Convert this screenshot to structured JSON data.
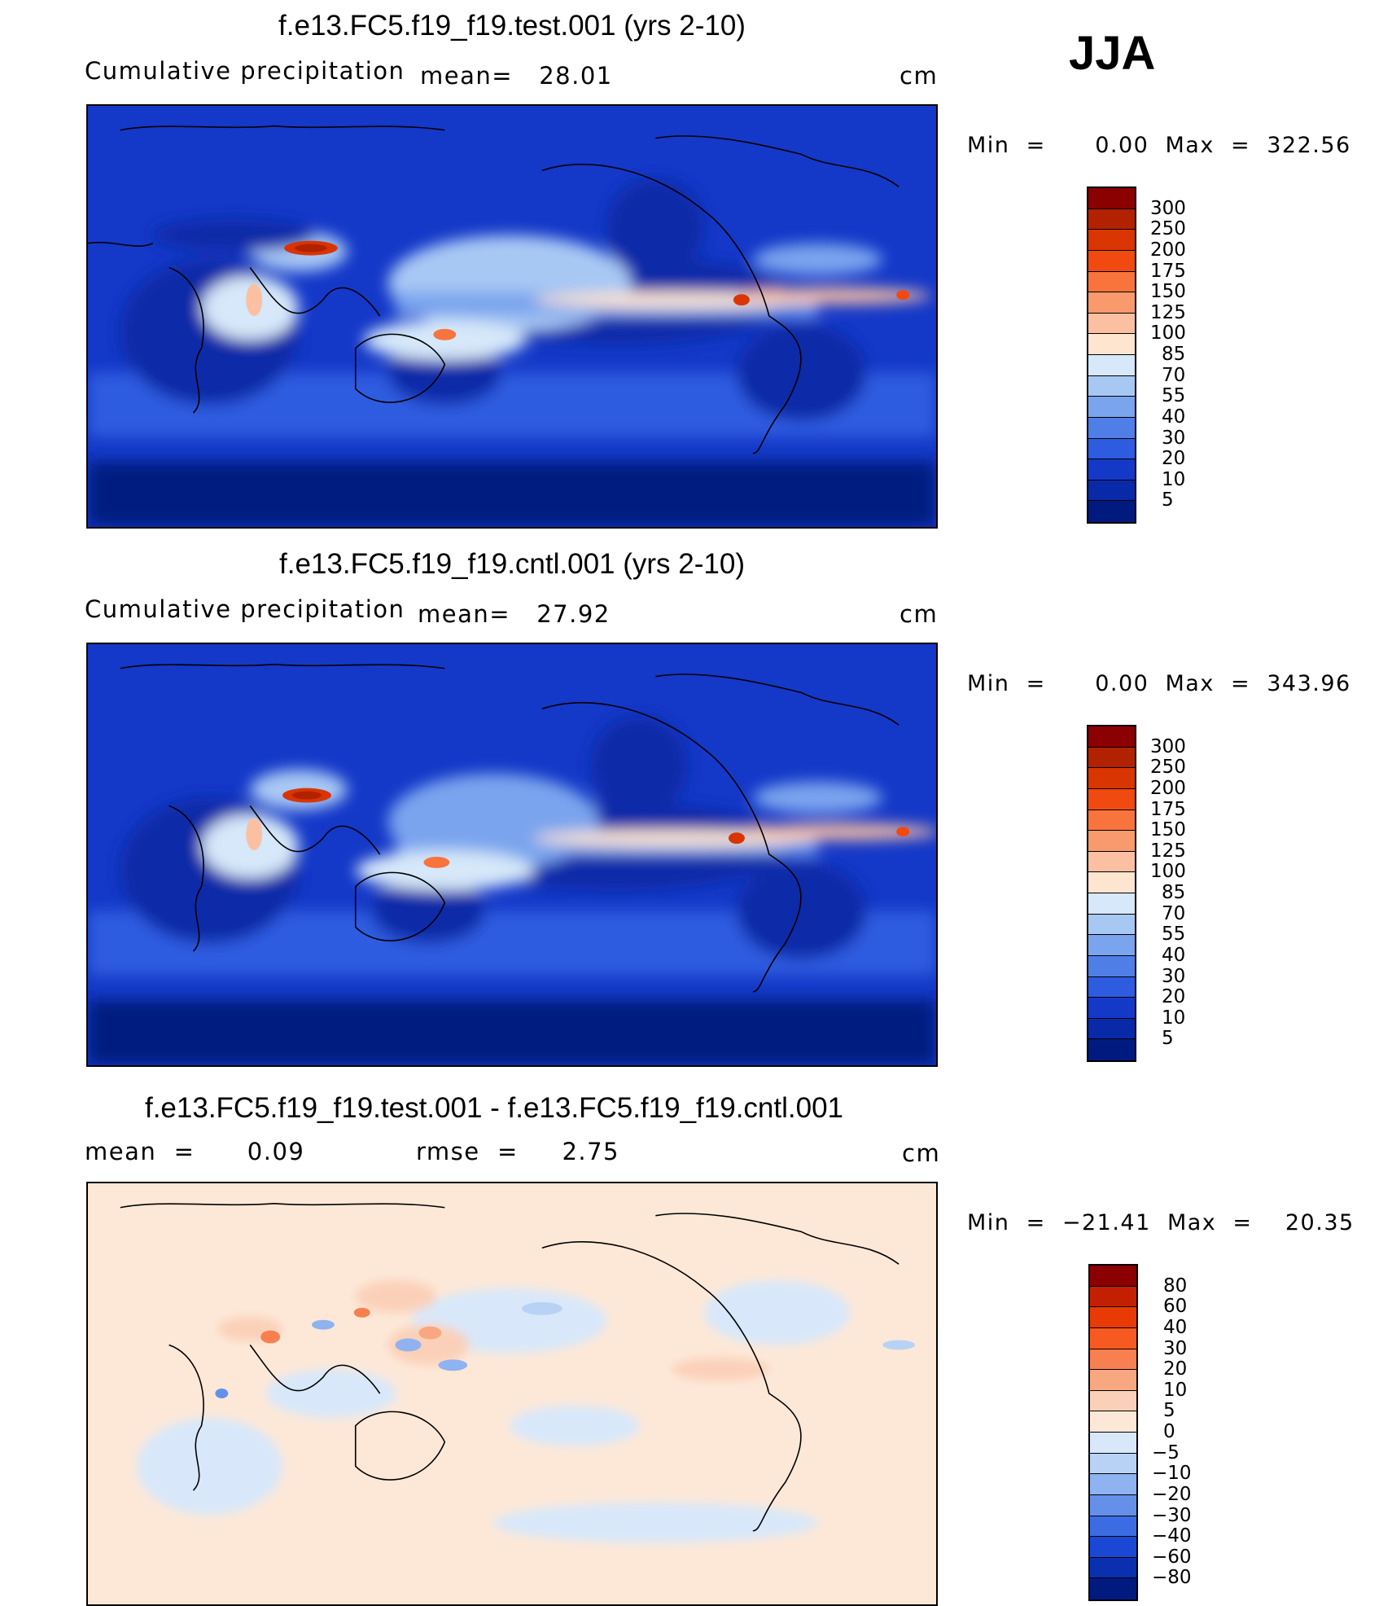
{
  "season": "JJA",
  "panels": [
    {
      "title": "f.e13.FC5.f19_f19.test.001 (yrs 2-10)",
      "left_label": "Cumulative precipitation",
      "stat1": "mean=   28.01",
      "stat2": "",
      "units": "cm",
      "minmax": "Min  =      0.00  Max  =  322.56",
      "levels": [
        "300",
        "250",
        "200",
        "175",
        "150",
        "125",
        "100",
        "85",
        "70",
        "55",
        "40",
        "30",
        "20",
        "10",
        "5"
      ]
    },
    {
      "title": "f.e13.FC5.f19_f19.cntl.001 (yrs 2-10)",
      "left_label": "Cumulative precipitation",
      "stat1": "mean=   27.92",
      "stat2": "",
      "units": "cm",
      "minmax": "Min  =      0.00  Max  =  343.96",
      "levels": [
        "300",
        "250",
        "200",
        "175",
        "150",
        "125",
        "100",
        "85",
        "70",
        "55",
        "40",
        "30",
        "20",
        "10",
        "5"
      ]
    },
    {
      "title": "f.e13.FC5.f19_f19.test.001 - f.e13.FC5.f19_f19.cntl.001",
      "left_label": "mean  =      0.09",
      "stat1": "rmse  =     2.75",
      "stat2": "",
      "units": "cm",
      "minmax": "Min  =  −21.41  Max  =    20.35",
      "levels": [
        "80",
        "60",
        "40",
        "30",
        "20",
        "10",
        "5",
        "0",
        "−5",
        "−10",
        "−20",
        "−30",
        "−40",
        "−60",
        "−80"
      ]
    }
  ],
  "colors": {
    "precip": [
      "#8b0000",
      "#b22200",
      "#d93500",
      "#f04a10",
      "#f8743c",
      "#f89a6c",
      "#fbc0a2",
      "#fde5d0",
      "#d6e8f9",
      "#a8c8f4",
      "#7aa4ee",
      "#4f7fe6",
      "#2d5ce0",
      "#1438c8",
      "#082aa8",
      "#001a80"
    ],
    "diff": [
      "#8b0000",
      "#c22000",
      "#e83a05",
      "#f65a20",
      "#f88050",
      "#f8a880",
      "#fbd0b8",
      "#fde8d8",
      "#d8e8fa",
      "#b8d2f6",
      "#8fb2f0",
      "#6590ea",
      "#3c6ce4",
      "#1a48d4",
      "#0a30b0",
      "#001a80"
    ]
  }
}
